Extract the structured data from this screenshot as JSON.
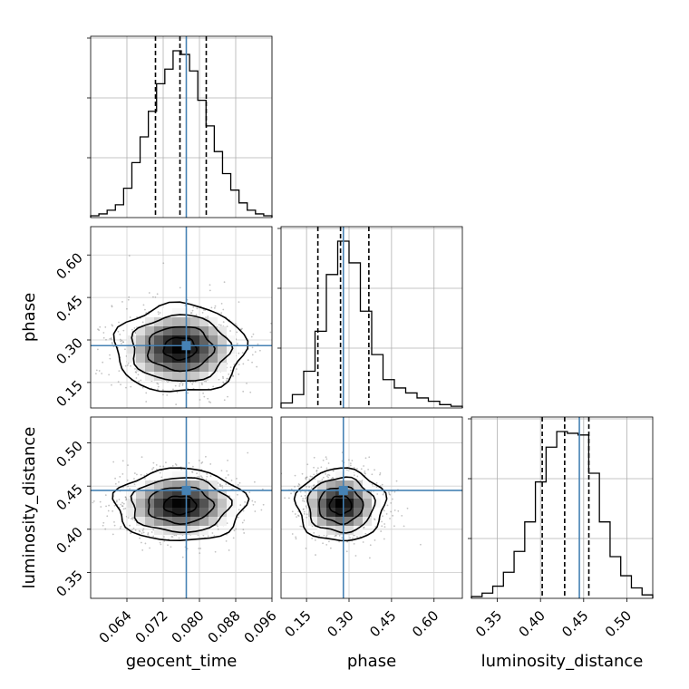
{
  "chart_data": {
    "type": "corner",
    "parameters": [
      {
        "name": "geocent_time",
        "label": "geocent_time",
        "range": [
          0.056,
          0.096
        ],
        "ticks": [
          0.064,
          0.072,
          0.08,
          0.088,
          0.096
        ],
        "tick_labels": [
          "0.064",
          "0.072",
          "0.080",
          "0.088",
          "0.096"
        ],
        "quantiles": [
          0.0703,
          0.0757,
          0.0815
        ],
        "truth": 0.0771,
        "histogram": [
          1,
          2,
          4,
          7,
          16,
          30,
          44,
          58,
          73,
          81,
          91,
          89,
          80,
          64,
          50,
          36,
          24,
          15,
          8,
          4,
          2,
          1
        ]
      },
      {
        "name": "phase",
        "label": "phase",
        "range": [
          0.06,
          0.7
        ],
        "ticks": [
          0.15,
          0.3,
          0.45,
          0.6
        ],
        "tick_labels": [
          "0.15",
          "0.30",
          "0.45",
          "0.60"
        ],
        "quantiles": [
          0.19,
          0.27,
          0.37
        ],
        "truth": 0.28,
        "histogram": [
          3,
          8,
          22,
          46,
          80,
          100,
          87,
          58,
          32,
          17,
          12,
          9,
          6,
          4,
          2,
          1
        ]
      },
      {
        "name": "luminosity_distance",
        "label": "luminosity_distance",
        "range": [
          0.32,
          0.53
        ],
        "ticks": [
          0.35,
          0.4,
          0.45,
          0.5
        ],
        "tick_labels": [
          "0.35",
          "0.40",
          "0.45",
          "0.50"
        ],
        "quantiles": [
          0.402,
          0.428,
          0.456
        ],
        "truth": 0.445,
        "histogram": [
          1,
          3,
          7,
          15,
          27,
          44,
          67,
          87,
          96,
          95,
          94,
          72,
          44,
          24,
          13,
          6,
          2
        ]
      }
    ],
    "contours": [
      {
        "x": "geocent_time",
        "y": "phase",
        "center": [
          0.0757,
          0.27
        ],
        "sigma": [
          0.0072,
          0.078
        ],
        "rho": 0.0
      },
      {
        "x": "geocent_time",
        "y": "luminosity_distance",
        "center": [
          0.0757,
          0.428
        ],
        "sigma": [
          0.0072,
          0.021
        ],
        "rho": 0.0
      },
      {
        "x": "phase",
        "y": "luminosity_distance",
        "center": [
          0.27,
          0.428
        ],
        "sigma": [
          0.078,
          0.021
        ],
        "rho": 0.0
      }
    ],
    "truth_color": "#4682b4",
    "grid": true,
    "title": ""
  }
}
